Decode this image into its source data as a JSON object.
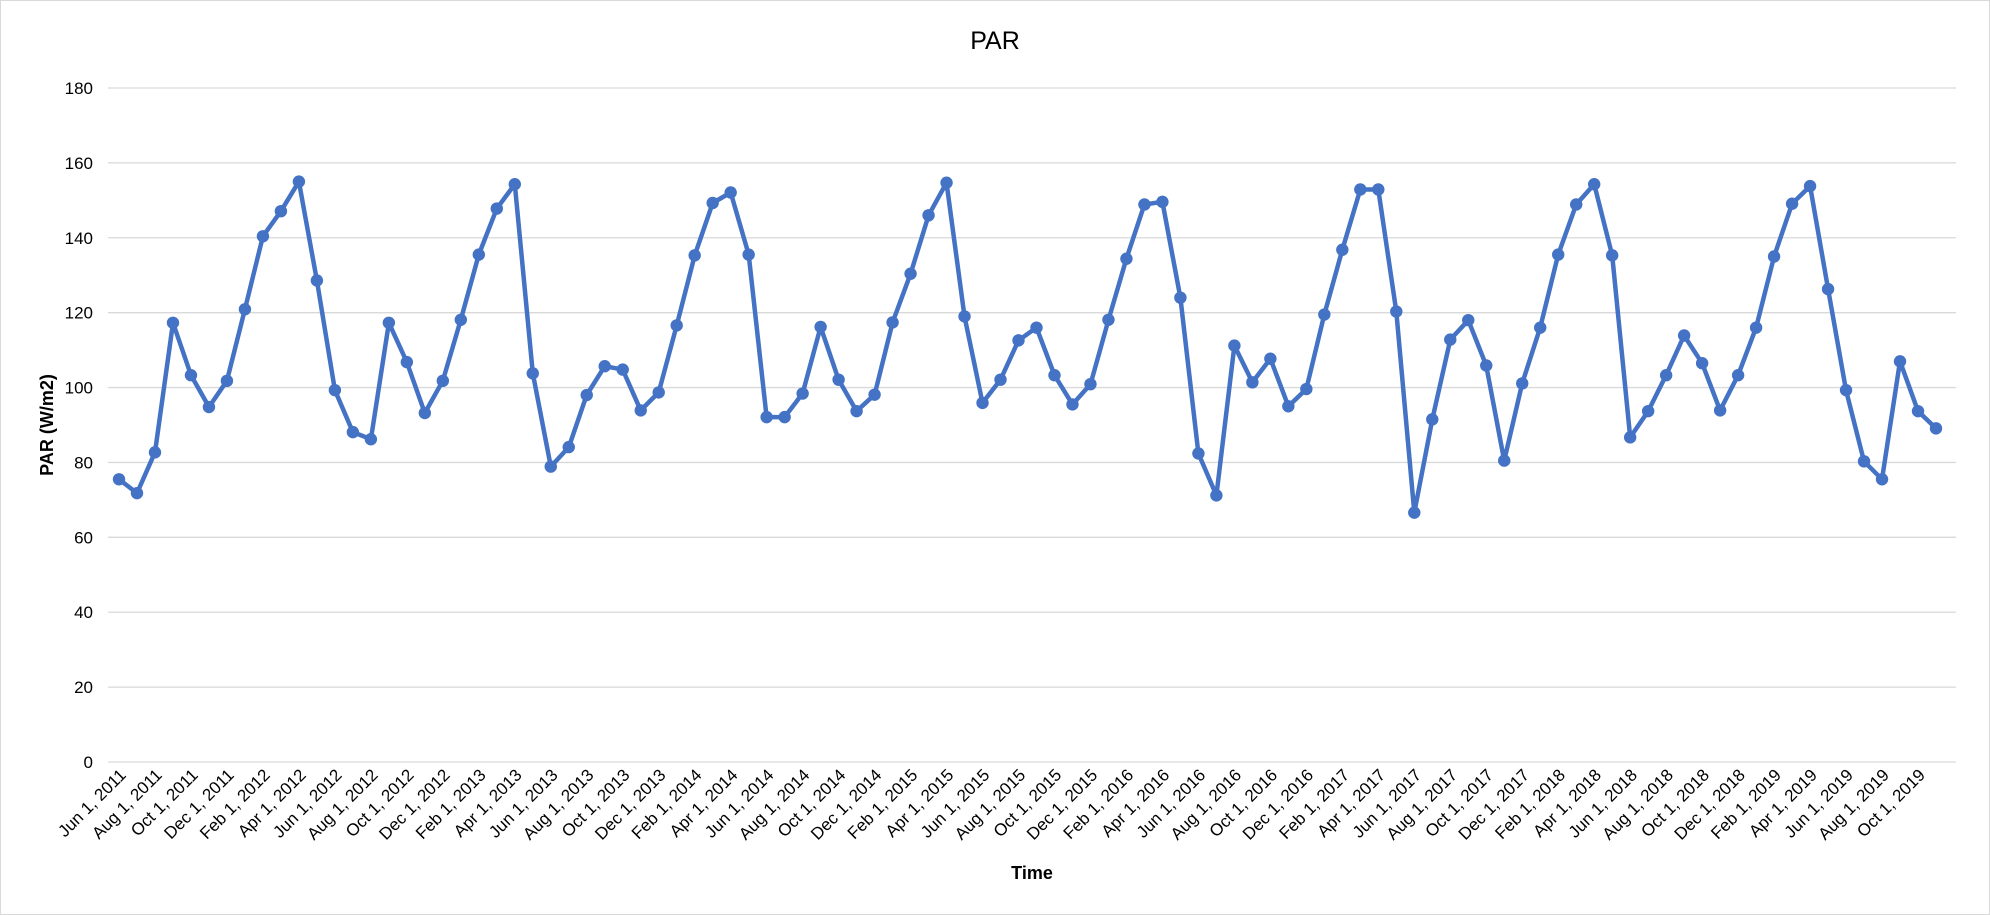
{
  "chart_data": {
    "type": "line",
    "title": "PAR",
    "xlabel": "Time",
    "ylabel": "PAR  (W/m2)",
    "ylim": [
      0,
      180
    ],
    "y_ticks": [
      0,
      20,
      40,
      60,
      80,
      100,
      120,
      140,
      160,
      180
    ],
    "grid": "horizontal",
    "legend": "none",
    "color": "#4472C4",
    "x_tick_labels": [
      "Jun 1, 2011",
      "Aug 1, 2011",
      "Oct 1, 2011",
      "Dec 1, 2011",
      "Feb 1, 2012",
      "Apr 1, 2012",
      "Jun 1, 2012",
      "Aug 1, 2012",
      "Oct 1, 2012",
      "Dec 1, 2012",
      "Feb 1, 2013",
      "Apr 1, 2013",
      "Jun 1, 2013",
      "Aug 1, 2013",
      "Oct 1, 2013",
      "Dec 1, 2013",
      "Feb 1, 2014",
      "Apr 1, 2014",
      "Jun 1, 2014",
      "Aug 1, 2014",
      "Oct 1, 2014",
      "Dec 1, 2014",
      "Feb 1, 2015",
      "Apr 1, 2015",
      "Jun 1, 2015",
      "Aug 1, 2015",
      "Oct 1, 2015",
      "Dec 1, 2015",
      "Feb 1, 2016",
      "Apr 1, 2016",
      "Jun 1, 2016",
      "Aug 1, 2016",
      "Oct 1, 2016",
      "Dec 1, 2016",
      "Feb 1, 2017",
      "Apr 1, 2017",
      "Jun 1, 2017",
      "Aug 1, 2017",
      "Oct 1, 2017",
      "Dec 1, 2017",
      "Feb 1, 2018",
      "Apr 1, 2018",
      "Jun 1, 2018",
      "Aug 1, 2018",
      "Oct 1, 2018",
      "Dec 1, 2018",
      "Feb 1, 2019",
      "Apr 1, 2019",
      "Jun 1, 2019",
      "Aug 1, 2019",
      "Oct 1, 2019"
    ],
    "x_start": "2011-06",
    "x_step": "1 month",
    "values": [
      75.5,
      71.8,
      82.7,
      117.3,
      103.3,
      94.8,
      101.8,
      120.9,
      140.4,
      147.1,
      155.0,
      128.6,
      99.3,
      88.1,
      86.2,
      117.3,
      106.8,
      93.2,
      101.8,
      118.1,
      135.5,
      147.8,
      154.3,
      103.8,
      78.9,
      84.1,
      98.0,
      105.7,
      104.8,
      93.9,
      98.7,
      116.6,
      135.3,
      149.3,
      152.1,
      135.5,
      92.1,
      92.1,
      98.4,
      116.2,
      102.1,
      93.7,
      98.1,
      117.4,
      130.4,
      146.0,
      154.7,
      119.0,
      95.9,
      102.1,
      112.6,
      116.0,
      103.3,
      95.5,
      100.9,
      118.1,
      134.4,
      148.9,
      149.6,
      124.0,
      82.4,
      71.2,
      111.2,
      101.4,
      107.7,
      95.0,
      99.6,
      119.5,
      136.8,
      152.9,
      152.9,
      120.3,
      66.6,
      91.5,
      112.8,
      118.0,
      105.9,
      80.5,
      101.1,
      116.0,
      135.5,
      148.9,
      154.3,
      135.3,
      86.7,
      93.7,
      103.3,
      113.9,
      106.5,
      93.9,
      103.3,
      116.0,
      135.0,
      149.1,
      153.8,
      126.3,
      99.3,
      80.3,
      75.5,
      107.0,
      93.7,
      89.1
    ]
  }
}
